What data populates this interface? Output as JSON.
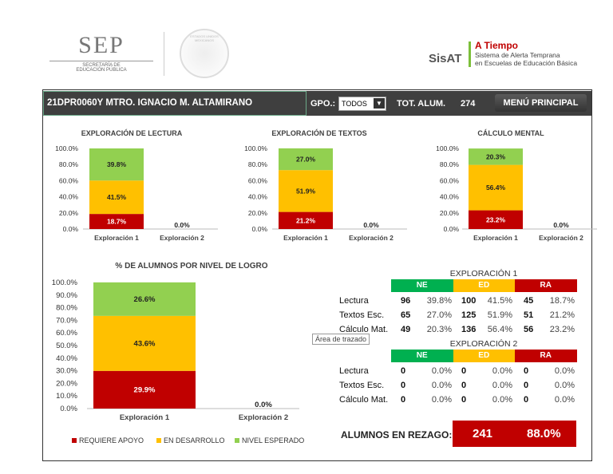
{
  "header": {
    "sep_logo": "SEP",
    "sep_subtitle": "SECRETARÍA DE EDUCACIÓN PÚBLICA",
    "seal_text": "ESTADOS UNIDOS MEXICANOS",
    "brand_title": "A Tiempo",
    "brand_line1": "Sistema de Alerta Temprana",
    "brand_line2": "en Escuelas de Educación Básica",
    "brand_logo": "SisAT"
  },
  "toolbar": {
    "school": "21DPR0060Y   MTRO. IGNACIO M. ALTAMIRANO",
    "group_label": "GPO.:",
    "group_value": "TODOS",
    "total_label": "TOT. ALUM.",
    "total_value": "274",
    "menu_label": "MENÚ PRINCIPAL"
  },
  "colors": {
    "NE": "#92d050",
    "ED": "#ffc000",
    "RA": "#c00000",
    "header": "#3f3f3f",
    "table_NE": "#00b050"
  },
  "chart_data": [
    {
      "type": "bar",
      "stacked": true,
      "title": "EXPLORACIÓN DE LECTURA",
      "categories": [
        "Exploración 1",
        "Exploración 2"
      ],
      "ylim": [
        0,
        100
      ],
      "yticks": [
        "0.0%",
        "20.0%",
        "40.0%",
        "60.0%",
        "80.0%",
        "100.0%"
      ],
      "series": [
        {
          "key": "RA",
          "values": [
            18.7,
            0
          ]
        },
        {
          "key": "ED",
          "values": [
            41.5,
            0
          ]
        },
        {
          "key": "NE",
          "values": [
            39.8,
            0
          ]
        }
      ],
      "labels": [
        [
          "18.7%",
          "41.5%",
          "39.8%"
        ],
        [
          "0.0%"
        ]
      ]
    },
    {
      "type": "bar",
      "stacked": true,
      "title": "EXPLORACIÓN DE TEXTOS",
      "categories": [
        "Exploración 1",
        "Exploración 2"
      ],
      "ylim": [
        0,
        100
      ],
      "yticks": [
        "0.0%",
        "20.0%",
        "40.0%",
        "60.0%",
        "80.0%",
        "100.0%"
      ],
      "series": [
        {
          "key": "RA",
          "values": [
            21.2,
            0
          ]
        },
        {
          "key": "ED",
          "values": [
            51.9,
            0
          ]
        },
        {
          "key": "NE",
          "values": [
            27.0,
            0
          ]
        }
      ],
      "labels": [
        [
          "21.2%",
          "51.9%",
          "27.0%"
        ],
        [
          "0.0%"
        ]
      ]
    },
    {
      "type": "bar",
      "stacked": true,
      "title": "CÁLCULO MENTAL",
      "categories": [
        "Exploración 1",
        "Exploración 2"
      ],
      "ylim": [
        0,
        100
      ],
      "yticks": [
        "0.0%",
        "20.0%",
        "40.0%",
        "60.0%",
        "80.0%",
        "100.0%"
      ],
      "series": [
        {
          "key": "RA",
          "values": [
            23.2,
            0
          ]
        },
        {
          "key": "ED",
          "values": [
            56.4,
            0
          ]
        },
        {
          "key": "NE",
          "values": [
            20.3,
            0
          ]
        }
      ],
      "labels": [
        [
          "23.2%",
          "56.4%",
          "20.3%"
        ],
        [
          "0.0%"
        ]
      ]
    },
    {
      "type": "bar",
      "stacked": true,
      "title": "% DE ALUMNOS POR NIVEL DE LOGRO",
      "categories": [
        "Exploración 1",
        "Exploración 2"
      ],
      "ylim": [
        0,
        100
      ],
      "yticks": [
        "0.0%",
        "10.0%",
        "20.0%",
        "30.0%",
        "40.0%",
        "50.0%",
        "60.0%",
        "70.0%",
        "80.0%",
        "90.0%",
        "100.0%"
      ],
      "series": [
        {
          "key": "RA",
          "name": "REQUIERE APOYO",
          "values": [
            29.9,
            0
          ]
        },
        {
          "key": "ED",
          "name": "EN DESARROLLO",
          "values": [
            43.6,
            0
          ]
        },
        {
          "key": "NE",
          "name": "NIVEL ESPERADO",
          "values": [
            26.6,
            0
          ]
        }
      ],
      "labels": [
        [
          "29.9%",
          "43.6%",
          "26.6%"
        ],
        [
          "0.0%"
        ]
      ],
      "legend": "bottom"
    }
  ],
  "tables": [
    {
      "title": "EXPLORACIÓN 1",
      "headers": [
        "NE",
        "ED",
        "RA"
      ],
      "rows": [
        {
          "label": "Lectura",
          "ne": "96",
          "ne_pct": "39.8%",
          "ed": "100",
          "ed_pct": "41.5%",
          "ra": "45",
          "ra_pct": "18.7%"
        },
        {
          "label": "Textos Esc.",
          "ne": "65",
          "ne_pct": "27.0%",
          "ed": "125",
          "ed_pct": "51.9%",
          "ra": "51",
          "ra_pct": "21.2%"
        },
        {
          "label": "Cálculo Mat.",
          "ne": "49",
          "ne_pct": "20.3%",
          "ed": "136",
          "ed_pct": "56.4%",
          "ra": "56",
          "ra_pct": "23.2%"
        }
      ]
    },
    {
      "title": "EXPLORACIÓN 2",
      "headers": [
        "NE",
        "ED",
        "RA"
      ],
      "rows": [
        {
          "label": "Lectura",
          "ne": "0",
          "ne_pct": "0.0%",
          "ed": "0",
          "ed_pct": "0.0%",
          "ra": "0",
          "ra_pct": "0.0%"
        },
        {
          "label": "Textos Esc.",
          "ne": "0",
          "ne_pct": "0.0%",
          "ed": "0",
          "ed_pct": "0.0%",
          "ra": "0",
          "ra_pct": "0.0%"
        },
        {
          "label": "Cálculo Mat.",
          "ne": "0",
          "ne_pct": "0.0%",
          "ed": "0",
          "ed_pct": "0.0%",
          "ra": "0",
          "ra_pct": "0.0%"
        }
      ]
    }
  ],
  "tooltip": "Área de trazado",
  "rezago": {
    "label": "ALUMNOS EN REZAGO:",
    "count": "241",
    "pct": "88.0%"
  }
}
